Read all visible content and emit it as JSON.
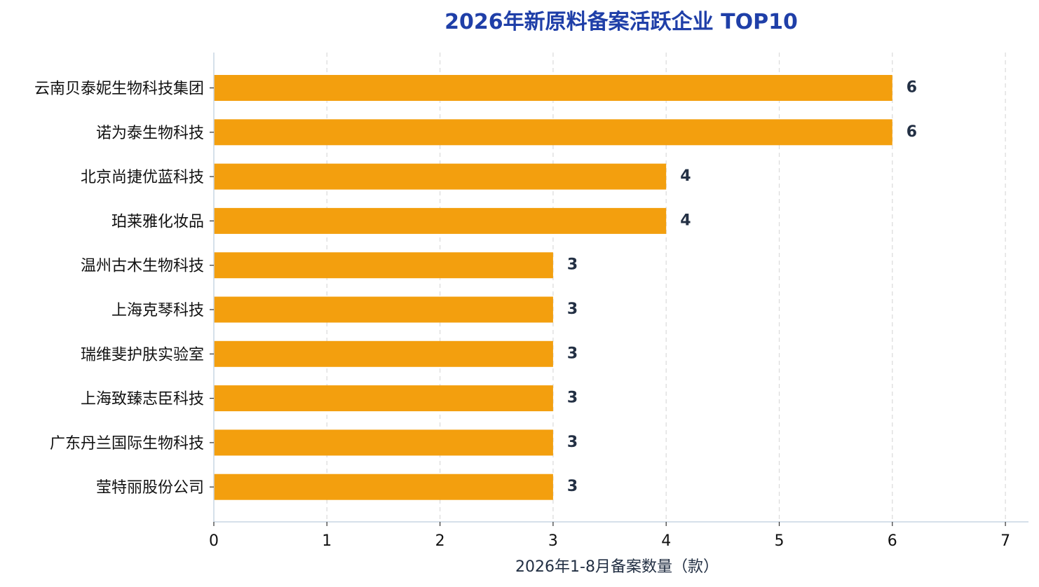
{
  "colors": {
    "bar": "#F39F0E",
    "title": "#1F3FA8",
    "value_label": "#233044",
    "axis_label": "#233044",
    "grid": "#DADADA",
    "axis": "#C9D6E3"
  },
  "chart_data": {
    "type": "bar",
    "orientation": "horizontal",
    "title": "2026年新原料备案活跃企业 TOP10",
    "xlabel": "2026年1-8月备案数量（款）",
    "ylabel": "",
    "xlim": [
      0,
      7
    ],
    "x_ticks": [
      "0",
      "1",
      "2",
      "3",
      "4",
      "5",
      "6",
      "7"
    ],
    "grid": "vertical-dashed",
    "categories": [
      "云南贝泰妮生物科技集团",
      "诺为泰生物科技",
      "北京尚捷优蓝科技",
      "珀莱雅化妆品",
      "温州古木生物科技",
      "上海克琴科技",
      "瑞维斐护肤实验室",
      "上海致臻志臣科技",
      "广东丹兰国际生物科技",
      "莹特丽股份公司"
    ],
    "values": [
      6,
      6,
      4,
      4,
      3,
      3,
      3,
      3,
      3,
      3
    ],
    "value_labels": [
      "6",
      "6",
      "4",
      "4",
      "3",
      "3",
      "3",
      "3",
      "3",
      "3"
    ]
  }
}
